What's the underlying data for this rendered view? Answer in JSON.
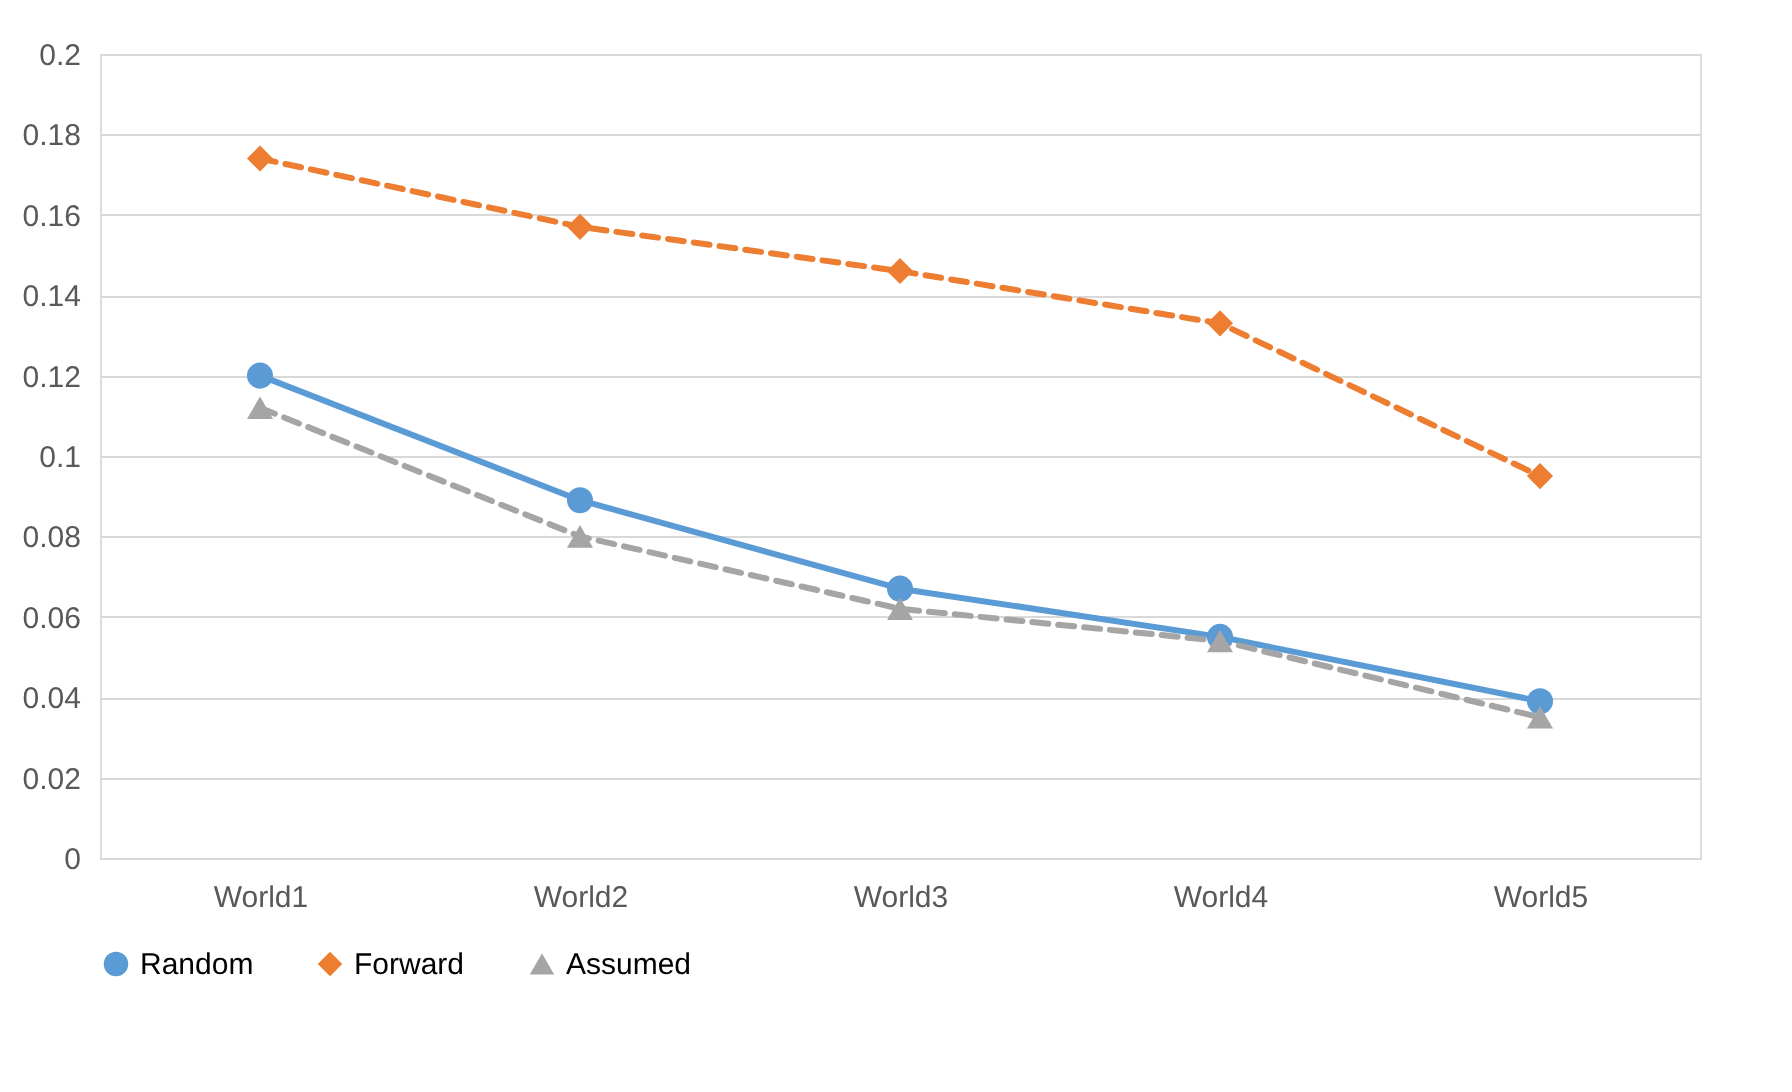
{
  "chart_data": {
    "type": "line",
    "categories": [
      "World1",
      "World2",
      "World3",
      "World4",
      "World5"
    ],
    "series": [
      {
        "name": "Random",
        "color": "#5b9bd5",
        "marker": "circle",
        "line_style": "solid",
        "values": [
          0.12,
          0.089,
          0.067,
          0.055,
          0.039
        ]
      },
      {
        "name": "Forward",
        "color": "#ed7d31",
        "marker": "diamond",
        "line_style": "dashed",
        "values": [
          0.174,
          0.157,
          0.146,
          0.133,
          0.095
        ]
      },
      {
        "name": "Assumed",
        "color": "#a5a5a5",
        "marker": "triangle",
        "line_style": "dashed",
        "values": [
          0.112,
          0.08,
          0.062,
          0.054,
          0.035
        ]
      }
    ],
    "ylim": [
      0,
      0.2
    ],
    "yticks": [
      0,
      0.02,
      0.04,
      0.06,
      0.08,
      0.1,
      0.12,
      0.14,
      0.16,
      0.18,
      0.2
    ],
    "grid": "y",
    "legend": "bottom"
  }
}
